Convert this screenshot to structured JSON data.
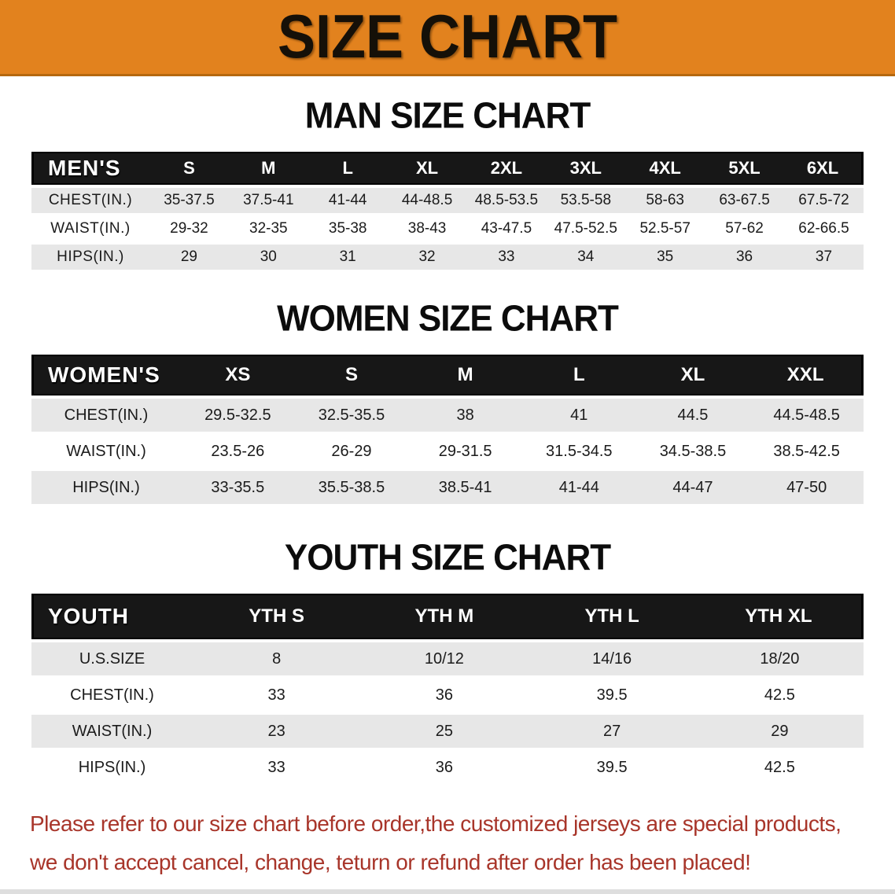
{
  "banner": {
    "title": "SIZE CHART",
    "bg_color": "#e2821e",
    "text_color": "#151008"
  },
  "sections": [
    {
      "title": "MAN SIZE CHART",
      "table": {
        "header_label": "MEN'S",
        "columns": [
          "S",
          "M",
          "L",
          "XL",
          "2XL",
          "3XL",
          "4XL",
          "5XL",
          "6XL"
        ],
        "rows": [
          {
            "label": "CHEST(IN.)",
            "values": [
              "35-37.5",
              "37.5-41",
              "41-44",
              "44-48.5",
              "48.5-53.5",
              "53.5-58",
              "58-63",
              "63-67.5",
              "67.5-72"
            ]
          },
          {
            "label": "WAIST(IN.)",
            "values": [
              "29-32",
              "32-35",
              "35-38",
              "38-43",
              "43-47.5",
              "47.5-52.5",
              "52.5-57",
              "57-62",
              "62-66.5"
            ]
          },
          {
            "label": "HIPS(IN.)",
            "values": [
              "29",
              "30",
              "31",
              "32",
              "33",
              "34",
              "35",
              "36",
              "37"
            ]
          }
        ]
      }
    },
    {
      "title": "WOMEN SIZE CHART",
      "table": {
        "header_label": "WOMEN'S",
        "columns": [
          "XS",
          "S",
          "M",
          "L",
          "XL",
          "XXL"
        ],
        "rows": [
          {
            "label": "CHEST(IN.)",
            "values": [
              "29.5-32.5",
              "32.5-35.5",
              "38",
              "41",
              "44.5",
              "44.5-48.5"
            ]
          },
          {
            "label": "WAIST(IN.)",
            "values": [
              "23.5-26",
              "26-29",
              "29-31.5",
              "31.5-34.5",
              "34.5-38.5",
              "38.5-42.5"
            ]
          },
          {
            "label": "HIPS(IN.)",
            "values": [
              "33-35.5",
              "35.5-38.5",
              "38.5-41",
              "41-44",
              "44-47",
              "47-50"
            ]
          }
        ]
      }
    },
    {
      "title": "YOUTH SIZE CHART",
      "table": {
        "header_label": "YOUTH",
        "columns": [
          "YTH S",
          "YTH M",
          "YTH L",
          "YTH XL"
        ],
        "rows": [
          {
            "label": "U.S.SIZE",
            "values": [
              "8",
              "10/12",
              "14/16",
              "18/20"
            ]
          },
          {
            "label": "CHEST(IN.)",
            "values": [
              "33",
              "36",
              "39.5",
              "42.5"
            ]
          },
          {
            "label": "WAIST(IN.)",
            "values": [
              "23",
              "25",
              "27",
              "29"
            ]
          },
          {
            "label": "HIPS(IN.)",
            "values": [
              "33",
              "36",
              "39.5",
              "42.5"
            ]
          }
        ]
      }
    }
  ],
  "footer": {
    "color": "#a8352a",
    "lines": [
      "Please refer to our size chart before order,the customized jerseys are special products,",
      "we don't accept cancel, change, teturn or refund after order has been placed!"
    ]
  }
}
